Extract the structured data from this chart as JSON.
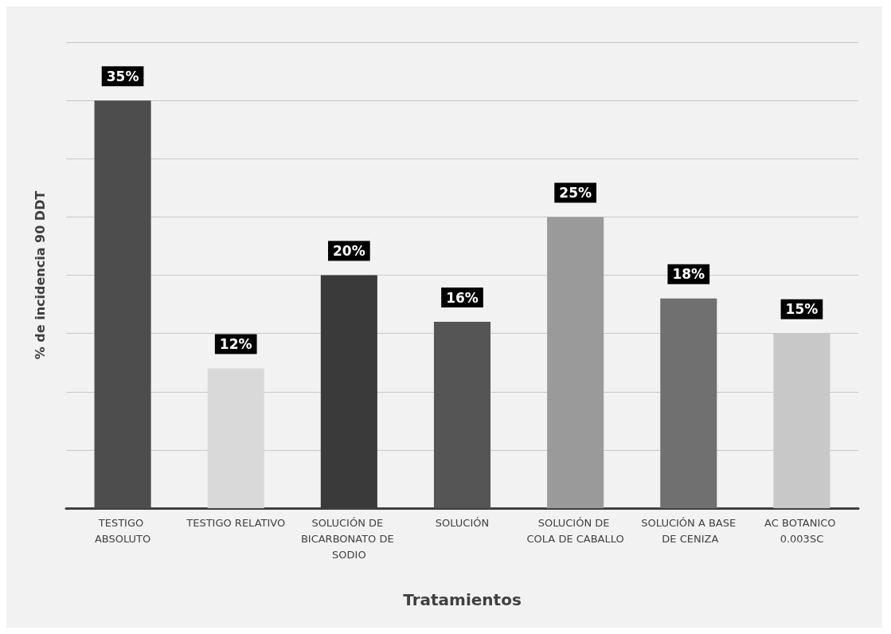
{
  "chart_data": {
    "type": "bar",
    "xlabel": "Tratamientos",
    "ylabel": "% de incidencia 90 DDT",
    "categories": [
      "TESTIGO ABSOLUTO",
      "TESTIGO RELATIVO",
      "SOLUCIÓN DE BICARBONATO DE SODIO",
      "SOLUCIÓN",
      "SOLUCIÓN DE COLA DE CABALLO",
      "SOLUCIÓN A BASE DE CENIZA",
      "AC BOTANICO 0.003SC"
    ],
    "values": [
      35,
      12,
      20,
      16,
      25,
      18,
      15
    ],
    "value_labels": [
      "35%",
      "12%",
      "20%",
      "16%",
      "25%",
      "18%",
      "15%"
    ],
    "colors": [
      "#4d4d4d",
      "#d9d9d9",
      "#3a3a3a",
      "#555555",
      "#9a9a9a",
      "#707070",
      "#c8c8c8"
    ],
    "ylim": [
      0,
      40
    ],
    "yticks": [
      {
        "value": 0,
        "label": null
      },
      {
        "value": 5,
        "label": null
      },
      {
        "value": 10,
        "label": null
      },
      {
        "value": 15,
        "label": null
      },
      {
        "value": 20,
        "label": null
      },
      {
        "value": 25,
        "label": null
      },
      {
        "value": 30,
        "label": null
      },
      {
        "value": 35,
        "label": null
      },
      {
        "value": 40,
        "label": null
      }
    ],
    "grid": "y",
    "tick_labels": "x"
  }
}
